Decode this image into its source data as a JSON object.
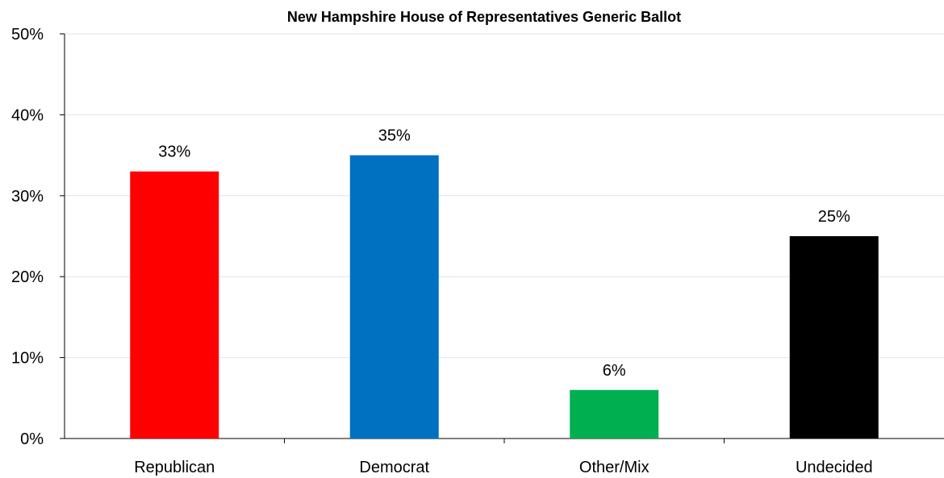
{
  "chart_data": {
    "type": "bar",
    "title": "New Hampshire House of Representatives Generic Ballot",
    "xlabel": "",
    "ylabel": "",
    "categories": [
      "Republican",
      "Democrat",
      "Other/Mix",
      "Undecided"
    ],
    "values": [
      33,
      35,
      6,
      25
    ],
    "data_labels": [
      "33%",
      "35%",
      "6%",
      "25%"
    ],
    "bar_colors": [
      "#ff0000",
      "#0070c0",
      "#00b050",
      "#000000"
    ],
    "ylim": [
      0,
      50
    ],
    "y_ticks": [
      0,
      10,
      20,
      30,
      40,
      50
    ],
    "y_tick_labels": [
      "0%",
      "10%",
      "20%",
      "30%",
      "40%",
      "50%"
    ],
    "grid": true,
    "legend": "none"
  }
}
